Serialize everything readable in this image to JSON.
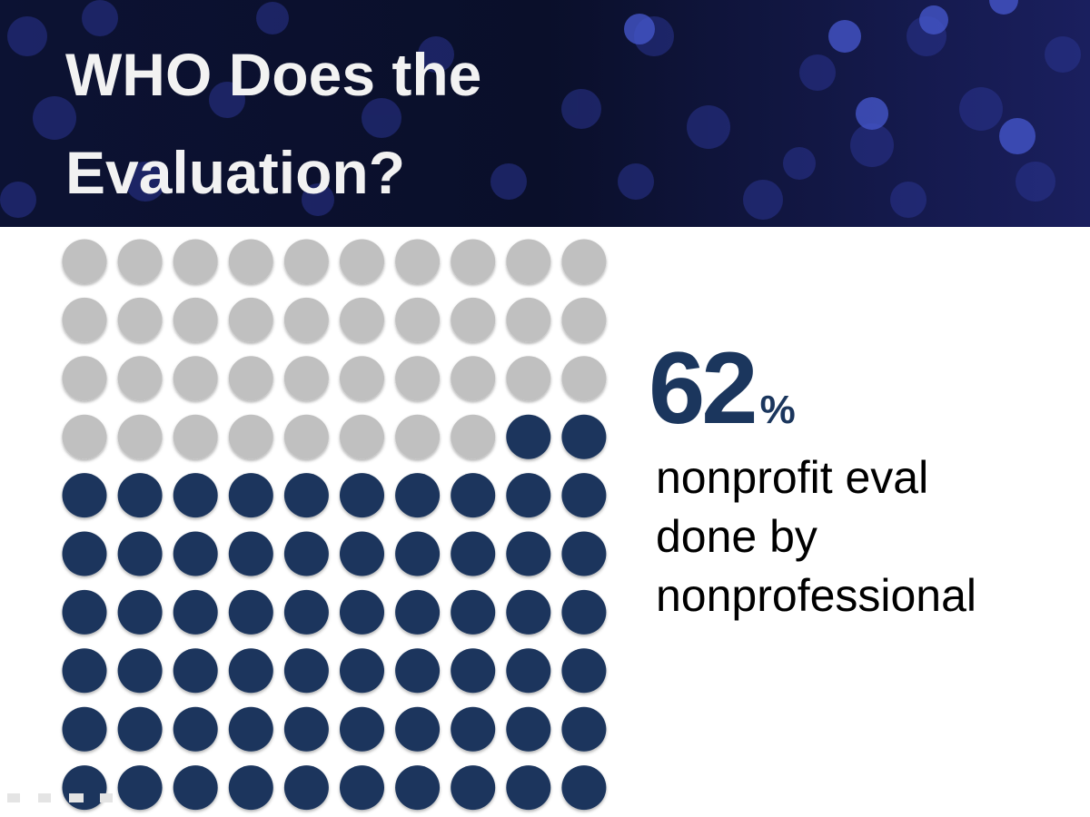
{
  "chart_data": {
    "type": "waffle",
    "title": "WHO Does the Evaluation?",
    "value": 62,
    "unit": "%",
    "caption_lines": [
      "nonprofit eval",
      "done by",
      "nonprofessional"
    ],
    "color": "#1b365d",
    "empty_color": "#c0c0c0"
  }
}
